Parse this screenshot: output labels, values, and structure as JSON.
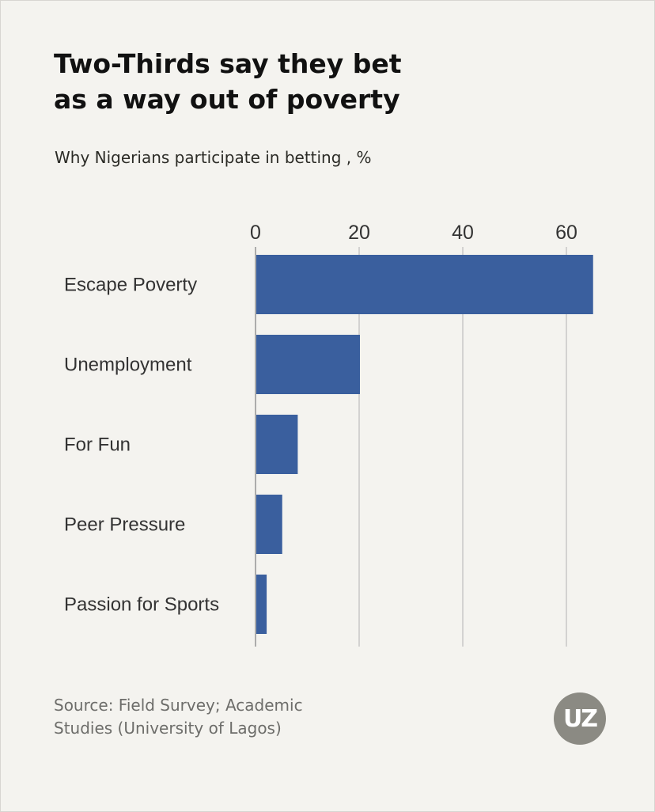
{
  "header": {
    "title_line1": "Two-Thirds say they bet",
    "title_line2": "as a way out of poverty",
    "subtitle": "Why Nigerians participate in betting , %"
  },
  "footer": {
    "source_line1": "Source: Field Survey; Academic",
    "source_line2": "Studies (University of Lagos)",
    "logo_text": "UZ"
  },
  "colors": {
    "bar": "#3a5f9e",
    "background": "#f4f3ef",
    "gridline": "#bdbdbd",
    "logo": "#8b8a83"
  },
  "chart_data": {
    "type": "bar",
    "orientation": "horizontal",
    "title": "Two-Thirds say they bet as a way out of poverty",
    "subtitle": "Why Nigerians participate in betting , %",
    "categories": [
      "Escape Poverty",
      "Unemployment",
      "For Fun",
      "Peer Pressure",
      "Passion for Sports"
    ],
    "values": [
      65,
      20,
      8,
      5,
      2
    ],
    "xticks": [
      0,
      20,
      40,
      60
    ],
    "xlim": [
      0,
      65
    ],
    "xlabel": "",
    "ylabel": "",
    "grid": true,
    "axis_position": "top"
  }
}
